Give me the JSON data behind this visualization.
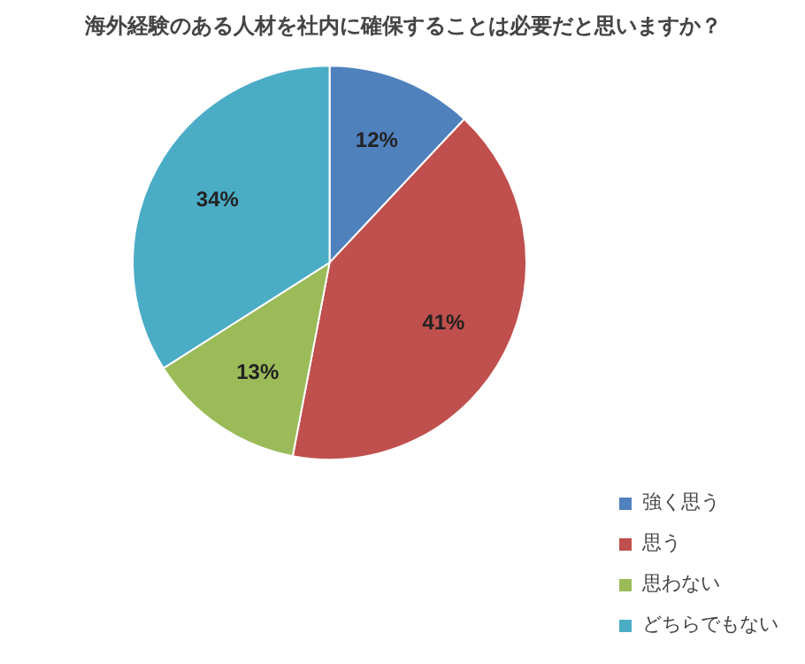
{
  "chart_data": {
    "type": "pie",
    "title": "海外経験のある人材を社内に確保することは必要だと思いますか？",
    "categories": [
      "強く思う",
      "思う",
      "思わない",
      "どちらでもない"
    ],
    "values": [
      12,
      41,
      13,
      34
    ],
    "colors": [
      "#4f81bd",
      "#c0504d",
      "#9bbb59",
      "#4bacc6"
    ],
    "value_labels": [
      "12%",
      "41%",
      "13%",
      "34%"
    ],
    "legend": "bottom right"
  }
}
